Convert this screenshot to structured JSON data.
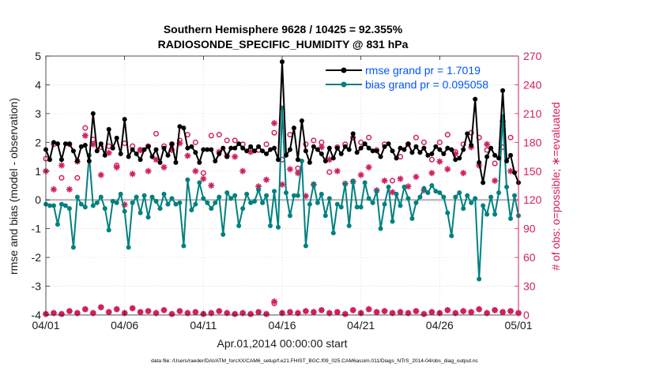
{
  "chart_data": {
    "type": "line",
    "title_line1": "Southern Hemisphere 9628 / 10425 = 92.355%",
    "title_line2": "RADIOSONDE_SPECIFIC_HUMIDITY @ 831 hPa",
    "xlabel": "Apr.01,2014 00:00:00 start",
    "ylabel_left": "rmse and bias (model - observation)",
    "ylabel_right": "# of obs: o=possible; ∗=evaluated",
    "footer": "data file: /Users/raeder/DAI/ATM_forcXX/CAM6_setup/f.e21.FHIST_BGC.f09_025.CAM6assim.011/Diags_NTrS_2014-04/obs_diag_output.nc",
    "x_range": [
      0,
      30
    ],
    "ylim_left": [
      -4,
      5
    ],
    "ylim_right": [
      0,
      270
    ],
    "x_tick_values": [
      0,
      5,
      10,
      15,
      20,
      25,
      30
    ],
    "x_tick_labels": [
      "04/01",
      "04/06",
      "04/11",
      "04/16",
      "04/21",
      "04/26",
      "05/01"
    ],
    "y_tick_labels_left": [
      "-4",
      "-3",
      "-2",
      "-1",
      "0",
      "1",
      "2",
      "3",
      "4",
      "5"
    ],
    "y_tick_labels_right": [
      "0",
      "30",
      "60",
      "90",
      "120",
      "150",
      "180",
      "210",
      "240",
      "270"
    ],
    "colors": {
      "rmse": "#000000",
      "bias": "#008080",
      "counts": "#d11f5c",
      "zero_line": "#bdbdbd",
      "legend_text": "#0055ff"
    },
    "series": [
      {
        "name": "rmse grand pr = 1.7019",
        "axis": "left",
        "x": [
          0,
          0.25,
          0.5,
          0.75,
          1,
          1.25,
          1.5,
          1.75,
          2,
          2.25,
          2.5,
          2.75,
          3,
          3.25,
          3.5,
          3.75,
          4,
          4.25,
          4.5,
          4.75,
          5,
          5.25,
          5.5,
          5.75,
          6,
          6.25,
          6.5,
          6.75,
          7,
          7.25,
          7.5,
          7.75,
          8,
          8.25,
          8.5,
          8.75,
          9,
          9.25,
          9.5,
          9.75,
          10,
          10.25,
          10.5,
          10.75,
          11,
          11.25,
          11.5,
          11.75,
          12,
          12.25,
          12.5,
          12.75,
          13,
          13.25,
          13.5,
          13.75,
          14,
          14.25,
          14.5,
          14.75,
          15,
          15.25,
          15.5,
          15.75,
          16,
          16.25,
          16.5,
          16.75,
          17,
          17.25,
          17.5,
          17.75,
          18,
          18.25,
          18.5,
          18.75,
          19,
          19.25,
          19.5,
          19.75,
          20,
          20.25,
          20.5,
          20.75,
          21,
          21.25,
          21.5,
          21.75,
          22,
          22.25,
          22.5,
          22.75,
          23,
          23.25,
          23.5,
          23.75,
          24,
          24.25,
          24.5,
          24.75,
          25,
          25.25,
          25.5,
          25.75,
          26,
          26.25,
          26.5,
          26.75,
          27,
          27.25,
          27.5,
          27.75,
          28,
          28.25,
          28.5,
          28.75,
          29,
          29.25,
          29.5,
          29.75,
          30
        ],
        "values": [
          1.75,
          1.4,
          2.0,
          1.95,
          1.4,
          1.95,
          1.95,
          1.7,
          1.35,
          1.85,
          1.9,
          1.35,
          3.0,
          1.7,
          1.95,
          1.55,
          2.45,
          1.8,
          2.15,
          1.6,
          2.8,
          1.5,
          1.75,
          1.6,
          1.4,
          1.75,
          1.85,
          1.5,
          1.75,
          1.3,
          1.8,
          1.55,
          1.95,
          1.3,
          2.55,
          2.5,
          1.8,
          1.85,
          1.65,
          1.3,
          1.75,
          1.75,
          1.75,
          1.35,
          1.6,
          1.8,
          1.5,
          1.8,
          1.8,
          1.95,
          1.8,
          1.7,
          1.85,
          1.7,
          1.85,
          1.7,
          1.6,
          1.75,
          1.8,
          1.4,
          4.8,
          1.55,
          1.75,
          2.5,
          1.4,
          2.75,
          1.7,
          1.3,
          1.85,
          1.75,
          1.6,
          1.35,
          1.8,
          1.45,
          1.8,
          1.6,
          1.85,
          1.75,
          2.3,
          1.65,
          1.8,
          1.95,
          1.8,
          1.7,
          1.7,
          1.5,
          1.85,
          1.95,
          1.7,
          1.45,
          1.8,
          1.75,
          1.95,
          1.65,
          1.85,
          1.65,
          1.8,
          1.55,
          1.6,
          1.85,
          1.75,
          1.6,
          1.8,
          1.75,
          1.4,
          1.45,
          1.75,
          2.3,
          1.9,
          3.5,
          1.3,
          0.6,
          1.5,
          1.8,
          1.55,
          1.45,
          3.8,
          1.35,
          1.55,
          0.95,
          0.6
        ]
      },
      {
        "name": "bias grand pr = 0.095058",
        "axis": "left",
        "x": [
          0,
          0.25,
          0.5,
          0.75,
          1,
          1.25,
          1.5,
          1.75,
          2,
          2.25,
          2.5,
          2.75,
          3,
          3.25,
          3.5,
          3.75,
          4,
          4.25,
          4.5,
          4.75,
          5,
          5.25,
          5.5,
          5.75,
          6,
          6.25,
          6.5,
          6.75,
          7,
          7.25,
          7.5,
          7.75,
          8,
          8.25,
          8.5,
          8.75,
          9,
          9.25,
          9.5,
          9.75,
          10,
          10.25,
          10.5,
          10.75,
          11,
          11.25,
          11.5,
          11.75,
          12,
          12.25,
          12.5,
          12.75,
          13,
          13.25,
          13.5,
          13.75,
          14,
          14.25,
          14.5,
          14.75,
          15,
          15.25,
          15.5,
          15.75,
          16,
          16.25,
          16.5,
          16.75,
          17,
          17.25,
          17.5,
          17.75,
          18,
          18.25,
          18.5,
          18.75,
          19,
          19.25,
          19.5,
          19.75,
          20,
          20.25,
          20.5,
          20.75,
          21,
          21.25,
          21.5,
          21.75,
          22,
          22.25,
          22.5,
          22.75,
          23,
          23.25,
          23.5,
          23.75,
          24,
          24.25,
          24.5,
          24.75,
          25,
          25.25,
          25.5,
          25.75,
          26,
          26.25,
          26.5,
          26.75,
          27,
          27.25,
          27.5,
          27.75,
          28,
          28.25,
          28.5,
          28.75,
          29,
          29.25,
          29.5,
          29.75,
          30
        ],
        "values": [
          -0.15,
          -0.2,
          -0.2,
          -0.85,
          -0.15,
          -0.2,
          -0.3,
          -1.65,
          0.1,
          -0.15,
          -0.25,
          1.55,
          -0.2,
          -0.1,
          0.1,
          -0.3,
          -1.05,
          -0.05,
          -0.1,
          0.2,
          -0.4,
          -1.65,
          -0.1,
          0.1,
          -0.45,
          0.15,
          -0.6,
          0.1,
          -0.05,
          -0.3,
          0.2,
          -0.15,
          0.05,
          -0.15,
          -0.1,
          -1.6,
          0.7,
          -0.35,
          -0.15,
          0.6,
          0.05,
          -0.1,
          -0.3,
          -0.1,
          0.1,
          -1.2,
          0.25,
          0.05,
          0.15,
          -0.9,
          -0.3,
          0.2,
          -0.1,
          -0.05,
          0.35,
          -0.1,
          0.15,
          -0.9,
          0.3,
          -0.95,
          3.2,
          0.25,
          -0.55,
          0.15,
          0.15,
          1.35,
          -1.6,
          -0.15,
          0.55,
          -0.1,
          0.2,
          -0.55,
          0.05,
          -1.15,
          -0.15,
          -0.25,
          0.55,
          -0.9,
          0.65,
          -0.25,
          -0.25,
          0.6,
          0.05,
          -0.1,
          0.3,
          -1.0,
          -0.15,
          0.45,
          -0.75,
          0.2,
          -0.2,
          0.45,
          0.05,
          -0.65,
          -0.1,
          0.1,
          0.4,
          0.25,
          0.5,
          0.3,
          0.25,
          0.1,
          -0.45,
          -1.25,
          0.1,
          0.25,
          -0.3,
          0.15,
          -0.1,
          0.05,
          -2.75,
          -0.2,
          -0.5,
          0.1,
          -0.5,
          0.25,
          2.9,
          0.45,
          -0.65,
          0.15,
          -0.55
        ]
      },
      {
        "name": "obs possible",
        "axis": "right",
        "marker": "o",
        "x": [
          0,
          0.5,
          1,
          1.5,
          2,
          2.5,
          3,
          3.5,
          4,
          4.5,
          5,
          5.5,
          6,
          6.5,
          7,
          7.5,
          8,
          8.5,
          9,
          9.5,
          10,
          10.5,
          11,
          11.5,
          12,
          12.5,
          13,
          13.5,
          14,
          14.5,
          15,
          15.5,
          16,
          16.5,
          17,
          17.5,
          18,
          18.5,
          19,
          19.5,
          20,
          20.5,
          21,
          21.5,
          22,
          22.5,
          23,
          23.5,
          24,
          24.5,
          25,
          25.5,
          26,
          26.5,
          27,
          27.5,
          28,
          28.5,
          29,
          29.5
        ],
        "values": [
          163,
          178,
          143,
          178,
          143,
          195,
          183,
          175,
          176,
          156,
          179,
          176,
          172,
          176,
          189,
          176,
          178,
          182,
          188,
          180,
          148,
          187,
          188,
          182,
          182,
          178,
          172,
          172,
          178,
          190,
          162,
          188,
          153,
          178,
          182,
          180,
          149,
          175,
          178,
          185,
          180,
          185,
          172,
          178,
          140,
          165,
          178,
          185,
          180,
          162,
          180,
          188,
          170,
          178,
          190,
          185,
          172,
          158,
          175,
          185
        ]
      },
      {
        "name": "obs evaluated",
        "axis": "right",
        "marker": "*",
        "x": [
          0,
          0.5,
          1,
          1.5,
          2,
          2.5,
          3,
          3.5,
          4,
          4.5,
          5,
          5.5,
          6,
          6.5,
          7,
          7.5,
          8,
          8.5,
          9,
          9.5,
          10,
          10.5,
          11,
          11.5,
          12,
          12.5,
          13,
          13.5,
          14,
          14.5,
          15,
          15.5,
          16,
          16.5,
          17,
          17.5,
          18,
          18.5,
          19,
          19.5,
          20,
          20.5,
          21,
          21.5,
          22,
          22.5,
          23,
          23.5,
          24,
          24.5,
          25,
          25.5,
          26,
          26.5,
          27,
          27.5,
          28,
          28.5,
          29,
          29.5
        ],
        "values": [
          150,
          131,
          156,
          131,
          160,
          187,
          178,
          146,
          169,
          154,
          115,
          147,
          172,
          150,
          162,
          154,
          172,
          179,
          166,
          150,
          142,
          135,
          170,
          166,
          165,
          150,
          170,
          134,
          141,
          200,
          136,
          152,
          148,
          124,
          136,
          175,
          162,
          150,
          137,
          139,
          146,
          154,
          130,
          140,
          128,
          142,
          134,
          144,
          130,
          148,
          160,
          152,
          168,
          148,
          175,
          156,
          178,
          140,
          202,
          150
        ]
      },
      {
        "name": "obs possible near zero",
        "axis": "right",
        "marker": "o",
        "x": [
          0,
          0.5,
          1,
          1.5,
          2,
          2.5,
          3,
          3.5,
          4,
          4.5,
          5,
          5.5,
          6,
          6.5,
          7,
          7.5,
          8,
          8.5,
          9,
          9.5,
          10,
          10.5,
          11,
          11.5,
          12,
          12.5,
          13,
          13.5,
          14,
          14.5,
          15,
          15.5,
          16,
          16.5,
          17,
          17.5,
          18,
          18.5,
          19,
          19.5,
          20,
          20.5,
          21,
          21.5,
          22,
          22.5,
          23,
          23.5,
          24,
          24.5,
          25,
          25.5,
          26,
          26.5,
          27,
          27.5,
          28,
          28.5,
          29,
          29.5,
          30
        ],
        "values": [
          1,
          2,
          1,
          4,
          2,
          6,
          2,
          8,
          3,
          6,
          2,
          7,
          3,
          4,
          2,
          5,
          1,
          4,
          2,
          3,
          1,
          2,
          4,
          2,
          1,
          2,
          1,
          3,
          1,
          12,
          2,
          3,
          2,
          4,
          3,
          5,
          2,
          3,
          1,
          5,
          2,
          6,
          3,
          4,
          2,
          3,
          2,
          4,
          1,
          3,
          2,
          5,
          2,
          4,
          3,
          6,
          2,
          5,
          3,
          4,
          2
        ]
      },
      {
        "name": "obs evaluated near zero",
        "axis": "right",
        "marker": "*",
        "x": [
          0,
          0.5,
          1,
          1.5,
          2,
          2.5,
          3,
          3.5,
          4,
          4.5,
          5,
          5.5,
          6,
          6.5,
          7,
          7.5,
          8,
          8.5,
          9,
          9.5,
          10,
          10.5,
          11,
          11.5,
          12,
          12.5,
          13,
          13.5,
          14,
          14.5,
          15,
          15.5,
          16,
          16.5,
          17,
          17.5,
          18,
          18.5,
          19,
          19.5,
          20,
          20.5,
          21,
          21.5,
          22,
          22.5,
          23,
          23.5,
          24,
          24.5,
          25,
          25.5,
          26,
          26.5,
          27,
          27.5,
          28,
          28.5,
          29,
          29.5,
          30
        ],
        "values": [
          1,
          2,
          1,
          4,
          2,
          6,
          2,
          8,
          3,
          6,
          2,
          7,
          3,
          4,
          2,
          5,
          1,
          4,
          2,
          3,
          1,
          2,
          4,
          2,
          1,
          2,
          1,
          3,
          1,
          14,
          2,
          3,
          2,
          4,
          3,
          5,
          2,
          3,
          1,
          5,
          2,
          6,
          3,
          4,
          2,
          3,
          2,
          4,
          1,
          3,
          2,
          5,
          2,
          4,
          3,
          6,
          2,
          5,
          3,
          4,
          2
        ]
      }
    ]
  }
}
